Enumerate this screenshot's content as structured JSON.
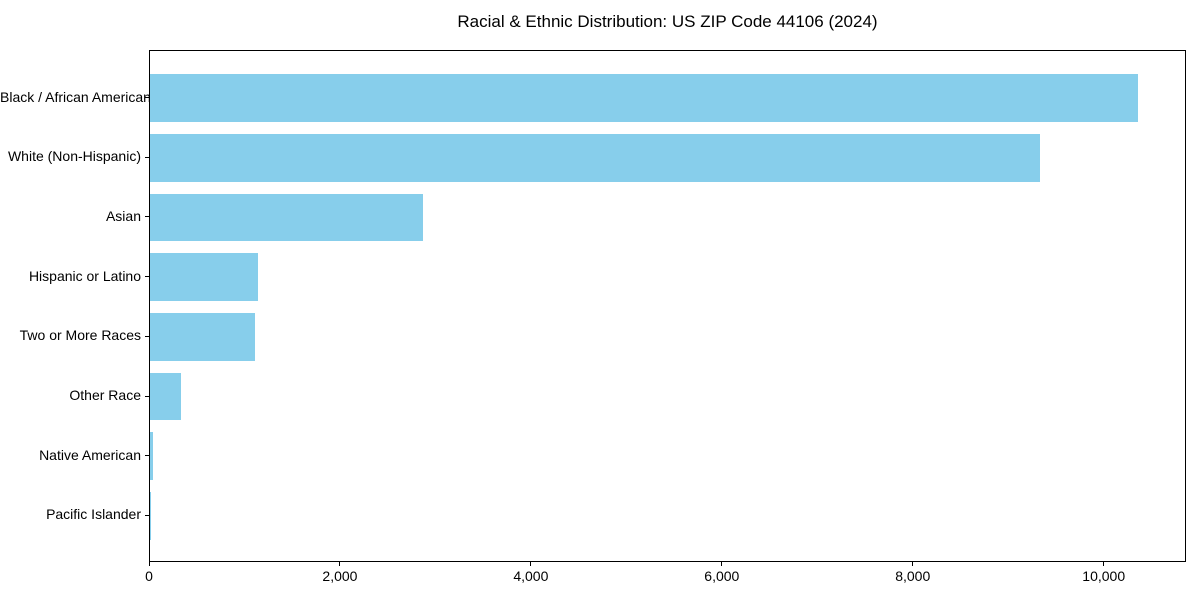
{
  "page": {
    "background": "#ffffff"
  },
  "chart_data": {
    "type": "bar",
    "orientation": "horizontal",
    "title": "Racial & Ethnic Distribution: US ZIP Code 44106 (2024)",
    "categories": [
      "Black / African American",
      "White (Non-Hispanic)",
      "Asian",
      "Hispanic or Latino",
      "Two or More Races",
      "Other Race",
      "Native American",
      "Pacific Islander"
    ],
    "values": [
      10345,
      9320,
      2860,
      1130,
      1100,
      325,
      30,
      10
    ],
    "xlabel": "",
    "ylabel": "",
    "xlim": [
      0,
      10862
    ],
    "x_ticks": [
      0,
      2000,
      4000,
      6000,
      8000,
      10000
    ],
    "x_tick_labels": [
      "0",
      "2,000",
      "4,000",
      "6,000",
      "8,000",
      "10,000"
    ],
    "bar_color": "#87CEEB",
    "axis_color": "#000000",
    "text_color": "#000000",
    "grid": false,
    "legend": "none"
  }
}
